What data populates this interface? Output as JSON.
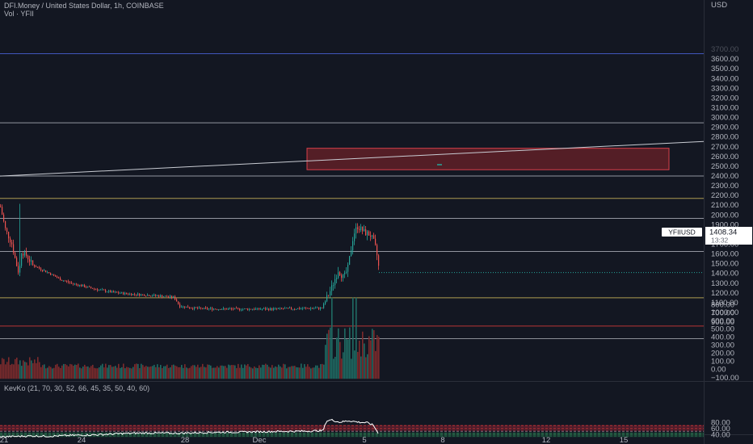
{
  "legend": {
    "symbol_title": "DFI.Money / United States Dollar, 1h, COINBASE",
    "volume_label": "Vol · YFII",
    "indicator_label": "KevKo (21, 70, 30, 52, 66, 45, 35, 50, 40, 60)"
  },
  "price_axis": {
    "currency": "USD",
    "ticks": [
      "3600.00",
      "3500.00",
      "3400.00",
      "3300.00",
      "3200.00",
      "3100.00",
      "3000.00",
      "2900.00",
      "2800.00",
      "2700.00",
      "2600.00",
      "2500.00",
      "2400.00",
      "2300.00",
      "2200.00",
      "2100.00",
      "2000.00",
      "1900.00",
      "1800.00",
      "1700.00",
      "1600.00",
      "1500.00",
      "1400.00",
      "1300.00",
      "1200.00",
      "1100.00",
      "1000.00",
      "900.00"
    ],
    "cut_off_top_tick": "3700.00"
  },
  "volume_axis": {
    "ticks": [
      "800.00",
      "700.00",
      "600.00",
      "500.00",
      "400.00",
      "300.00",
      "200.00",
      "100.00",
      "0.00",
      "−100.00"
    ]
  },
  "indicator_axis": {
    "ticks": [
      "80.00",
      "60.00",
      "40.00"
    ]
  },
  "time_axis": {
    "ticks": [
      "21",
      "24",
      "28",
      "Dec",
      "5",
      "8",
      "12",
      "15"
    ]
  },
  "last_price": {
    "symbol_tag": "YFIIUSD",
    "value": "1408.34",
    "countdown": "13:32"
  },
  "colors": {
    "background": "#131722",
    "up": "#26a69a",
    "down": "#ef5350",
    "text": "#b2b5be",
    "hline_white": "#a9acb4",
    "hline_yellow": "#c8b45a",
    "hline_red": "#d63a3a",
    "hline_blue": "#4a61d6",
    "zone_fill": "#6b2128",
    "zone_border": "#d8404a"
  },
  "chart_data": {
    "type": "candlestick",
    "symbol": "YFIIUSD",
    "interval": "1h",
    "price_range": [
      850,
      3720
    ],
    "price_path": [
      {
        "x": "21",
        "price": 2080
      },
      {
        "x": "21",
        "price": 1390
      },
      {
        "x": "22",
        "price": 1620
      },
      {
        "x": "23",
        "price": 1300
      },
      {
        "x": "24",
        "price": 1250
      },
      {
        "x": "26",
        "price": 1180
      },
      {
        "x": "28",
        "price": 1020
      },
      {
        "x": "Dec",
        "price": 1025
      },
      {
        "x": "3",
        "price": 1110
      },
      {
        "x": "4",
        "price": 1930
      },
      {
        "x": "5",
        "price": 1408.34
      }
    ],
    "horizontal_levels": [
      {
        "price": 3655,
        "color": "blue"
      },
      {
        "price": 2945,
        "color": "white"
      },
      {
        "price": 2400,
        "color": "white"
      },
      {
        "price": 2170,
        "color": "yellow"
      },
      {
        "price": 1965,
        "color": "white"
      },
      {
        "price": 1625,
        "color": "white"
      },
      {
        "price": 1150,
        "color": "yellow"
      },
      {
        "price": 860,
        "color": "red"
      }
    ],
    "trendline": {
      "from": {
        "x": "21",
        "price": 2395
      },
      "to": {
        "x": "18",
        "price": 2750
      }
    },
    "zone": {
      "price_top": 2680,
      "price_bottom": 2460,
      "x_from": "Dec 2",
      "x_to": "Dec 17"
    },
    "volume": {
      "range": [
        -140,
        870
      ],
      "reference_level": 380
    },
    "indicator": {
      "range": [
        28,
        92
      ],
      "levels": [
        70,
        60,
        52,
        50,
        45,
        40,
        35,
        30
      ],
      "values": [
        31,
        34,
        33,
        36,
        38,
        40,
        44,
        43,
        46,
        48,
        49,
        50,
        88,
        85,
        80,
        70,
        40
      ]
    }
  }
}
